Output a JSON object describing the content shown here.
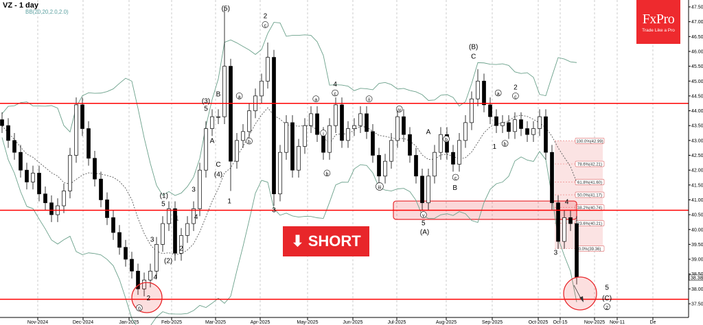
{
  "header": {
    "title": "VZ - 1 day",
    "indicator": "BB(20,20,2.0,2.0)"
  },
  "logo": {
    "brand": "FxPro",
    "tagline": "Trade Like a Pro"
  },
  "signal": {
    "label": "SHORT",
    "icon": "arrow-down-icon",
    "color": "#e8262a"
  },
  "chart_data": {
    "type": "candlestick",
    "symbol": "VZ",
    "timeframe": "1 day",
    "ylim": [
      37.25,
      47.75
    ],
    "y_ticks": [
      "37.50",
      "38.00",
      "38.50",
      "39.00",
      "39.50",
      "40.00",
      "40.50",
      "41.00",
      "41.50",
      "42.00",
      "42.50",
      "43.00",
      "43.50",
      "44.00",
      "44.50",
      "45.00",
      "45.50",
      "46.00",
      "46.50",
      "47.00",
      "47.50"
    ],
    "x_ticks": [
      "Nov-2024",
      "Dec-2024",
      "Jan-2025",
      "Feb-2025",
      "Mar-2025",
      "Apr-2025",
      "May-2025",
      "Jun-2025",
      "Jul-2025",
      "Aug-2025",
      "Sep-2025",
      "Oct-2025",
      "Oct-15",
      "Nov-2025",
      "Nov-11",
      "De"
    ],
    "last_price": "38.38",
    "close": [
      43.5,
      43.0,
      42.6,
      42.0,
      41.6,
      41.9,
      41.2,
      40.9,
      40.5,
      40.8,
      41.3,
      42.5,
      44.2,
      43.4,
      42.4,
      41.7,
      41.0,
      40.4,
      39.9,
      39.4,
      39.0,
      38.6,
      38.0,
      38.3,
      38.6,
      39.5,
      40.2,
      40.7,
      39.2,
      39.8,
      40.2,
      40.7,
      42.0,
      43.4,
      43.8,
      43.8,
      45.5,
      42.3,
      43.0,
      43.3,
      44.0,
      44.5,
      45.0,
      45.8,
      41.2,
      42.6,
      43.6,
      42.0,
      42.8,
      43.5,
      43.9,
      43.2,
      42.6,
      43.5,
      44.2,
      43.0,
      43.4,
      43.5,
      43.9,
      43.3,
      42.5,
      41.8,
      42.3,
      43.0,
      43.8,
      43.2,
      42.5,
      41.8,
      40.9,
      41.8,
      42.6,
      43.2,
      42.6,
      42.2,
      43.0,
      43.6,
      44.4,
      45.0,
      44.2,
      43.8,
      43.5,
      43.6,
      43.3,
      43.7,
      43.4,
      43.2,
      43.4,
      43.8,
      42.6,
      40.9,
      39.6,
      40.4,
      40.2,
      38.4
    ],
    "wick_extremes": [
      {
        "i": 36,
        "high": 47.5
      },
      {
        "i": 37,
        "low": 41.3
      },
      {
        "i": 43,
        "high": 46.3
      },
      {
        "i": 44,
        "low": 40.8
      },
      {
        "i": 77,
        "high": 45.4
      },
      {
        "i": 22,
        "low": 37.8
      }
    ],
    "levels": [
      {
        "price": 44.25,
        "color": "#ff0000"
      },
      {
        "price": 40.65,
        "color": "#ff0000"
      },
      {
        "price": 37.65,
        "color": "#ff0000"
      }
    ],
    "zone": {
      "from": 40.34,
      "to": 40.96,
      "color": "#e8262a"
    },
    "fibonacci": [
      {
        "label": "100.0%(42.99)",
        "price": 42.99
      },
      {
        "label": "78.6%(42.21)",
        "price": 42.21
      },
      {
        "label": "61.8%(41.60)",
        "price": 41.6
      },
      {
        "label": "50.0%(41.17)",
        "price": 41.17
      },
      {
        "label": "38.2%(40.74)",
        "price": 40.74
      },
      {
        "label": "23.6%(40.21)",
        "price": 40.21
      },
      {
        "label": "0.0%(39.36)",
        "price": 39.36
      }
    ],
    "wave_labels": [
      {
        "t": "(5)",
        "i": 36.2,
        "p": 47.45
      },
      {
        "t": "2",
        "i": 42.6,
        "p": 47.2
      },
      {
        "t": "c",
        "i": 42.6,
        "p": 46.9,
        "circ": true
      },
      {
        "t": "(3)",
        "i": 33,
        "p": 44.34
      },
      {
        "t": "5",
        "i": 33,
        "p": 44.08
      },
      {
        "t": "B",
        "i": 35,
        "p": 44.57
      },
      {
        "t": "A",
        "i": 34,
        "p": 43.0
      },
      {
        "t": "C",
        "i": 35,
        "p": 42.2
      },
      {
        "t": "(4)",
        "i": 35,
        "p": 41.87
      },
      {
        "t": "3",
        "i": 31,
        "p": 41.36
      },
      {
        "t": "4",
        "i": 31.4,
        "p": 40.43
      },
      {
        "t": "(1)",
        "i": 26.2,
        "p": 41.15
      },
      {
        "t": "5",
        "i": 26.1,
        "p": 40.87
      },
      {
        "t": "1",
        "i": 28.3,
        "p": 40.39
      },
      {
        "t": "2",
        "i": 29,
        "p": 39.37
      },
      {
        "t": "3",
        "i": 24.3,
        "p": 39.67
      },
      {
        "t": "(2)",
        "i": 26.9,
        "p": 38.95
      },
      {
        "t": "4",
        "i": 24.8,
        "p": 38.4
      },
      {
        "t": "2",
        "i": 23.7,
        "p": 37.7
      },
      {
        "t": "0",
        "i": 22.2,
        "p": 37.36,
        "circ": true
      },
      {
        "t": "1",
        "i": 36.8,
        "p": 40.96
      },
      {
        "t": "3",
        "i": 44,
        "p": 40.66
      },
      {
        "t": "4",
        "i": 53.9,
        "p": 44.9
      },
      {
        "t": "c",
        "i": 53.9,
        "p": 44.6,
        "circ": true
      },
      {
        "t": "a",
        "i": 38.4,
        "p": 44.5,
        "circ": true
      },
      {
        "t": "b",
        "i": 40,
        "p": 42.98,
        "circ": true
      },
      {
        "t": "a",
        "i": 50.8,
        "p": 44.4,
        "circ": true
      },
      {
        "t": "i",
        "i": 52,
        "p": 43.25,
        "circ": true
      },
      {
        "t": "b",
        "i": 52.6,
        "p": 41.9,
        "circ": true
      },
      {
        "t": "ii",
        "i": 59.4,
        "p": 44.4,
        "circ": true
      },
      {
        "t": "iii",
        "i": 61.1,
        "p": 41.45,
        "circ": true
      },
      {
        "t": "iv",
        "i": 64.3,
        "p": 44.06,
        "circ": true
      },
      {
        "t": "v",
        "i": 68.2,
        "p": 40.5,
        "circ": true
      },
      {
        "t": "5",
        "i": 68.2,
        "p": 40.22
      },
      {
        "t": "(A)",
        "i": 68.4,
        "p": 39.92
      },
      {
        "t": "A",
        "i": 69,
        "p": 43.3
      },
      {
        "t": "b",
        "i": 71.9,
        "p": 43.05,
        "circ": true
      },
      {
        "t": "c",
        "i": 73.4,
        "p": 41.76,
        "circ": true
      },
      {
        "t": "B",
        "i": 73.3,
        "p": 41.42
      },
      {
        "t": "(B)",
        "i": 76.3,
        "p": 46.16
      },
      {
        "t": "C",
        "i": 76.3,
        "p": 45.84
      },
      {
        "t": "a",
        "i": 80.3,
        "p": 44.6,
        "circ": true
      },
      {
        "t": "1",
        "i": 79.7,
        "p": 42.8
      },
      {
        "t": "b",
        "i": 81.4,
        "p": 42.9,
        "circ": true
      },
      {
        "t": "2",
        "i": 83.1,
        "p": 44.8
      },
      {
        "t": "c",
        "i": 83.1,
        "p": 44.5,
        "circ": true
      },
      {
        "t": "4",
        "i": 91.4,
        "p": 40.94
      },
      {
        "t": "3",
        "i": 89.6,
        "p": 39.23
      },
      {
        "t": "5",
        "i": 97.9,
        "p": 38.05
      },
      {
        "t": "(C)",
        "i": 97.9,
        "p": 37.7
      },
      {
        "t": "2",
        "i": 97.9,
        "p": 37.4,
        "circ": true
      }
    ],
    "colors": {
      "bull": "#ffffff",
      "bear": "#000000",
      "bands": "#6aa08a",
      "middle": "#555555",
      "grid": "#aaaaaa"
    }
  }
}
